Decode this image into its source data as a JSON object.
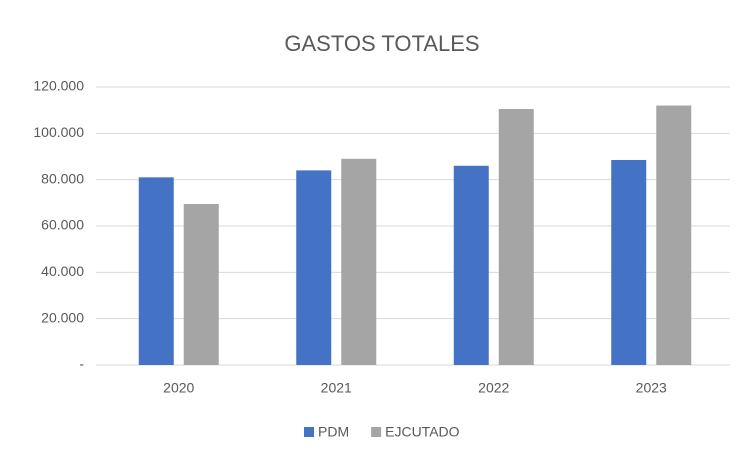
{
  "chart_data": {
    "type": "bar",
    "title": "GASTOS TOTALES",
    "categories": [
      "2020",
      "2021",
      "2022",
      "2023"
    ],
    "series": [
      {
        "name": "PDM",
        "color": "#4472c4",
        "values": [
          81000,
          84000,
          86000,
          88500
        ]
      },
      {
        "name": "EJCUTADO",
        "color": "#a5a5a5",
        "values": [
          69500,
          89000,
          110500,
          112000
        ]
      }
    ],
    "ylim": [
      0,
      120000
    ],
    "yticks": [
      {
        "value": 0,
        "label": "-"
      },
      {
        "value": 20000,
        "label": "20.000"
      },
      {
        "value": 40000,
        "label": "40.000"
      },
      {
        "value": 60000,
        "label": "60.000"
      },
      {
        "value": 80000,
        "label": "80.000"
      },
      {
        "value": 100000,
        "label": "100.000"
      },
      {
        "value": 120000,
        "label": "120.000"
      }
    ],
    "grid": true,
    "legend": "bottom"
  }
}
